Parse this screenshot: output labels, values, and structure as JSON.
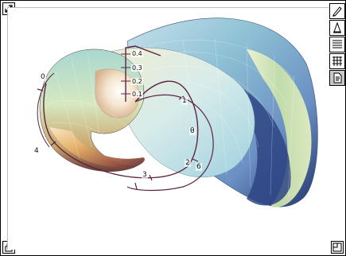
{
  "figure": {
    "radial_ticks": [
      "0.4",
      "0.3",
      "0.2",
      "0.1"
    ],
    "curve_labels": [
      "0",
      "1",
      "θ",
      "2",
      "3",
      "4",
      "6"
    ]
  },
  "toolbar": {
    "tools": [
      "pencil-tool",
      "rotate-tool",
      "grid-tool",
      "mesh-tool",
      "info-tool"
    ]
  },
  "colors": {
    "shell_light": "#e8f0d2",
    "shell_mid": "#9ac7d4",
    "shell_dark": "#24356e",
    "shell_brown": "#7c4a43",
    "curve": "#5a2540"
  }
}
